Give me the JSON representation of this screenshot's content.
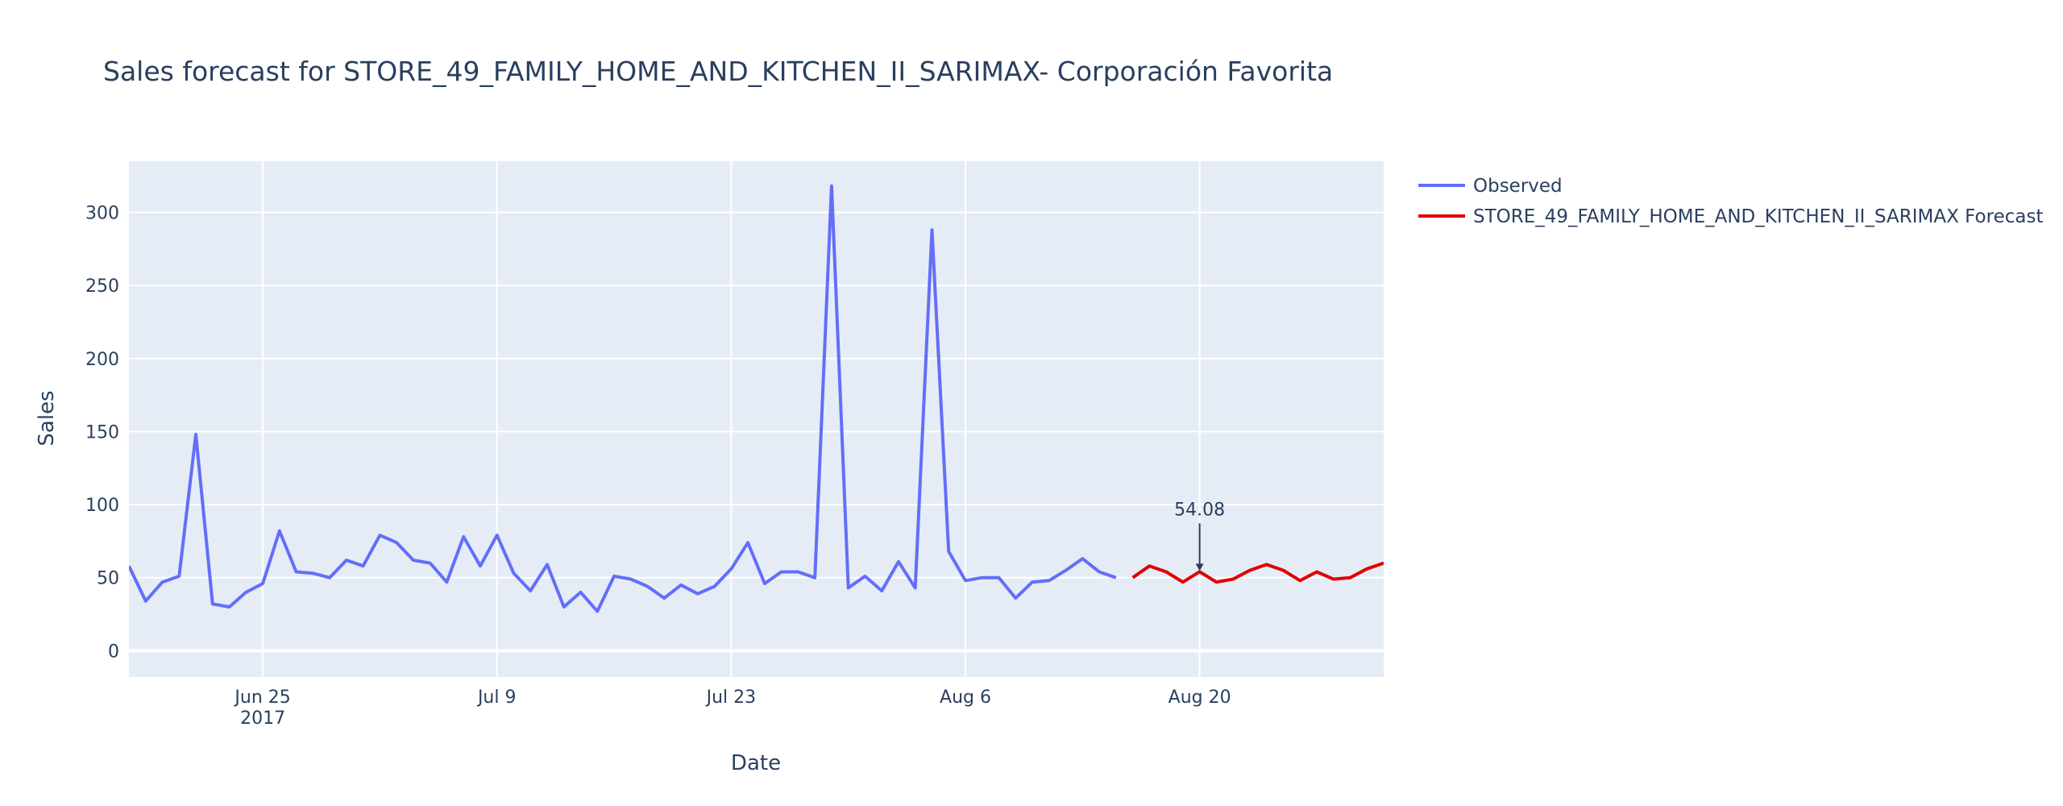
{
  "chart_data": {
    "type": "line",
    "title": "Sales forecast for STORE_49_FAMILY_HOME_AND_KITCHEN_II_SARIMAX- Corporación Favorita",
    "xlabel": "Date",
    "ylabel": "Sales",
    "xlim": [
      "2017-06-17",
      "2017-08-31"
    ],
    "ylim": [
      -18,
      335
    ],
    "x_ticks": [
      {
        "date": "2017-06-25",
        "label": "Jun 25",
        "sublabel": "2017"
      },
      {
        "date": "2017-07-09",
        "label": "Jul 9",
        "sublabel": ""
      },
      {
        "date": "2017-07-23",
        "label": "Jul 23",
        "sublabel": ""
      },
      {
        "date": "2017-08-06",
        "label": "Aug 6",
        "sublabel": ""
      },
      {
        "date": "2017-08-20",
        "label": "Aug 20",
        "sublabel": ""
      }
    ],
    "y_ticks": [
      {
        "value": 0,
        "label": "0"
      },
      {
        "value": 50,
        "label": "50"
      },
      {
        "value": 100,
        "label": "100"
      },
      {
        "value": 150,
        "label": "150"
      },
      {
        "value": 200,
        "label": "200"
      },
      {
        "value": 250,
        "label": "250"
      },
      {
        "value": 300,
        "label": "300"
      }
    ],
    "grid": true,
    "legend_position": "top-right-outside",
    "background_color": "#e5ecf6",
    "series": [
      {
        "name": "Observed",
        "color": "#636efa",
        "points": [
          [
            "2017-06-17",
            58
          ],
          [
            "2017-06-18",
            34
          ],
          [
            "2017-06-19",
            47
          ],
          [
            "2017-06-20",
            51
          ],
          [
            "2017-06-21",
            148
          ],
          [
            "2017-06-22",
            32
          ],
          [
            "2017-06-23",
            30
          ],
          [
            "2017-06-24",
            40
          ],
          [
            "2017-06-25",
            46
          ],
          [
            "2017-06-26",
            82
          ],
          [
            "2017-06-27",
            54
          ],
          [
            "2017-06-28",
            53
          ],
          [
            "2017-06-29",
            50
          ],
          [
            "2017-06-30",
            62
          ],
          [
            "2017-07-01",
            58
          ],
          [
            "2017-07-02",
            79
          ],
          [
            "2017-07-03",
            74
          ],
          [
            "2017-07-04",
            62
          ],
          [
            "2017-07-05",
            60
          ],
          [
            "2017-07-06",
            47
          ],
          [
            "2017-07-07",
            78
          ],
          [
            "2017-07-08",
            58
          ],
          [
            "2017-07-09",
            79
          ],
          [
            "2017-07-10",
            53
          ],
          [
            "2017-07-11",
            41
          ],
          [
            "2017-07-12",
            59
          ],
          [
            "2017-07-13",
            30
          ],
          [
            "2017-07-14",
            40
          ],
          [
            "2017-07-15",
            27
          ],
          [
            "2017-07-16",
            51
          ],
          [
            "2017-07-17",
            49
          ],
          [
            "2017-07-18",
            44
          ],
          [
            "2017-07-19",
            36
          ],
          [
            "2017-07-20",
            45
          ],
          [
            "2017-07-21",
            39
          ],
          [
            "2017-07-22",
            44
          ],
          [
            "2017-07-23",
            56
          ],
          [
            "2017-07-24",
            74
          ],
          [
            "2017-07-25",
            46
          ],
          [
            "2017-07-26",
            54
          ],
          [
            "2017-07-27",
            54
          ],
          [
            "2017-07-28",
            50
          ],
          [
            "2017-07-29",
            318
          ],
          [
            "2017-07-30",
            43
          ],
          [
            "2017-07-31",
            51
          ],
          [
            "2017-08-01",
            41
          ],
          [
            "2017-08-02",
            61
          ],
          [
            "2017-08-03",
            43
          ],
          [
            "2017-08-04",
            288
          ],
          [
            "2017-08-05",
            68
          ],
          [
            "2017-08-06",
            48
          ],
          [
            "2017-08-07",
            50
          ],
          [
            "2017-08-08",
            50
          ],
          [
            "2017-08-09",
            36
          ],
          [
            "2017-08-10",
            47
          ],
          [
            "2017-08-11",
            48
          ],
          [
            "2017-08-12",
            55
          ],
          [
            "2017-08-13",
            63
          ],
          [
            "2017-08-14",
            54
          ],
          [
            "2017-08-15",
            50
          ]
        ]
      },
      {
        "name": "STORE_49_FAMILY_HOME_AND_KITCHEN_II_SARIMAX Forecast",
        "color": "#e00000",
        "points": [
          [
            "2017-08-16",
            50
          ],
          [
            "2017-08-17",
            58
          ],
          [
            "2017-08-18",
            54
          ],
          [
            "2017-08-19",
            47
          ],
          [
            "2017-08-20",
            54.08
          ],
          [
            "2017-08-21",
            47
          ],
          [
            "2017-08-22",
            49
          ],
          [
            "2017-08-23",
            55
          ],
          [
            "2017-08-24",
            59
          ],
          [
            "2017-08-25",
            55
          ],
          [
            "2017-08-26",
            48
          ],
          [
            "2017-08-27",
            54
          ],
          [
            "2017-08-28",
            49
          ],
          [
            "2017-08-29",
            50
          ],
          [
            "2017-08-30",
            56
          ],
          [
            "2017-08-31",
            60
          ]
        ]
      }
    ],
    "annotations": [
      {
        "date": "2017-08-20",
        "value": 54.08,
        "text": "54.08"
      }
    ]
  }
}
